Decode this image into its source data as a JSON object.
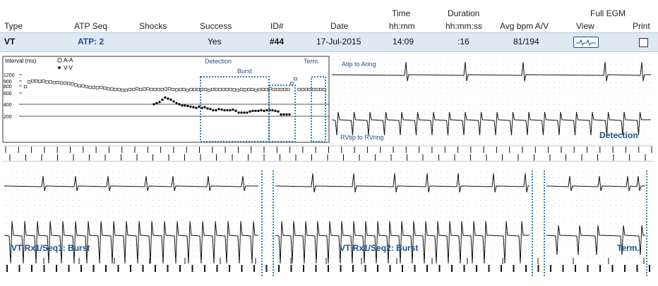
{
  "header": {
    "type": "Type",
    "atp_seq": "ATP Seq",
    "shocks": "Shocks",
    "success": "Success",
    "id": "ID#",
    "date": "Date",
    "time_top": "Time",
    "time_bottom": "hh:mm",
    "duration_top": "Duration",
    "duration_bottom": "hh:mm:ss",
    "avg_bpm": "Avg bpm A/V",
    "full_egm": "Full EGM",
    "view": "View",
    "print": "Print"
  },
  "episode": {
    "type": "VT",
    "atp_seq": "ATP: 2",
    "shocks": "",
    "success": "Yes",
    "id": "#44",
    "date": "17-Jul-2015",
    "time": "14:09",
    "duration": ":16",
    "avg_bpm": "81/194"
  },
  "egm": {
    "interval_label": "Interval (ms)",
    "legend_aa": "A-A",
    "legend_vv": "V-V",
    "y_ticks": [
      "1200",
      "900",
      "800",
      "600",
      "400",
      "200"
    ],
    "marker_detection": "Detection",
    "marker_burst": "Burst",
    "marker_term": "Term.",
    "atrial_channel": "Atip to Aring",
    "ventricular_channel": "RVtip to RVring",
    "detection_label": "Detection",
    "seq1_label": "VT Rx1/Seq1: Burst",
    "seq2_label": "VT Rx1/Seq2: Burst",
    "term_label": "Term."
  },
  "colors": {
    "row_bg": "#dfe9f3",
    "accent_blue": "#1f4e8c",
    "marker_dotted": "#2f7fb5",
    "trace": "#111111"
  },
  "chart_data": {
    "type": "scatter",
    "ylabel": "Interval (ms)",
    "yticks": [
      1200,
      900,
      800,
      600,
      400,
      200
    ],
    "series": [
      {
        "name": "A-A",
        "values": [
          780,
          880,
          900,
          900,
          890,
          900,
          880,
          880,
          870,
          870,
          860,
          860,
          850,
          840,
          820,
          800,
          800,
          780,
          760,
          760,
          750,
          760,
          740,
          720,
          710,
          700,
          700,
          680,
          680,
          700,
          700,
          720,
          700,
          710,
          720,
          700,
          700,
          700,
          700,
          710,
          720,
          700,
          690,
          700,
          700,
          680,
          700,
          700,
          700,
          700,
          700,
          680,
          700,
          700,
          700,
          700,
          700,
          700,
          690,
          680,
          700,
          690,
          700,
          700,
          680,
          700,
          700,
          700,
          720,
          700,
          700,
          700,
          700,
          700,
          850,
          1000,
          700,
          700,
          700,
          700,
          700,
          700,
          700,
          700
        ]
      },
      {
        "name": "V-V",
        "values": [
          400,
          420,
          440,
          480,
          520,
          500,
          480,
          450,
          420,
          400,
          380,
          380,
          370,
          360,
          350,
          340,
          360,
          340,
          350,
          330,
          320,
          300,
          300,
          320,
          310,
          300,
          300,
          300,
          310,
          290,
          260,
          260,
          260,
          260,
          280,
          290,
          290,
          290,
          300,
          290,
          300,
          300,
          300,
          290,
          280,
          230,
          230,
          230,
          230
        ]
      }
    ]
  }
}
